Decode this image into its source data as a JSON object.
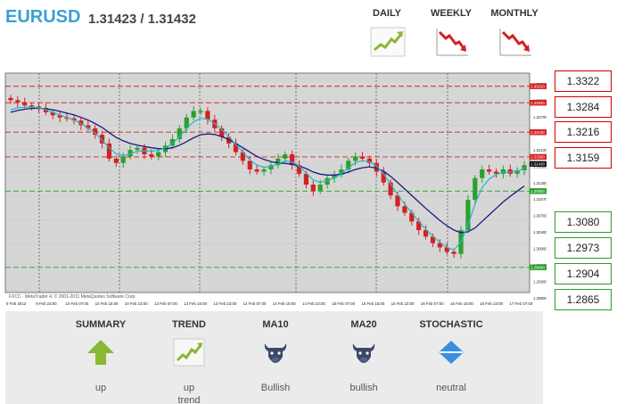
{
  "header": {
    "pair": "EURUSD",
    "quote": "1.31423 / 1.31432"
  },
  "timeframes": [
    {
      "label": "DAILY",
      "icon": "trend-up-icon",
      "direction": "up",
      "color": "#8ab833"
    },
    {
      "label": "WEEKLY",
      "icon": "trend-down-icon",
      "direction": "down",
      "color": "#d42020"
    },
    {
      "label": "MONTHLY",
      "icon": "trend-down-icon",
      "direction": "down",
      "color": "#d42020"
    }
  ],
  "resistance_levels": [
    "1.3322",
    "1.3284",
    "1.3216",
    "1.3159"
  ],
  "support_levels": [
    "1.3080",
    "1.2973",
    "1.2904",
    "1.2865"
  ],
  "summary": {
    "items": [
      {
        "title": "SUMMARY",
        "icon": "arrow-up-icon",
        "value": "up"
      },
      {
        "title": "TREND",
        "icon": "trend-up-icon",
        "value": "up\ntrend"
      },
      {
        "title": "MA10",
        "icon": "bull-icon",
        "value": "Bullish"
      },
      {
        "title": "MA20",
        "icon": "bull-icon",
        "value": "bullish"
      },
      {
        "title": "STOCHASTIC",
        "icon": "diamond-neutral-icon",
        "value": "neutral"
      }
    ]
  },
  "colors": {
    "accent": "#3aa0d5",
    "bull": "#2ca02c",
    "bear": "#d62020",
    "ma_fast": "#20b8c8",
    "ma_slow": "#1a1a80",
    "up_icon": "#8ab833",
    "neutral_icon": "#3a8ee0",
    "bull_icon": "#3a4a66"
  },
  "chart_data": {
    "type": "candlestick",
    "watermark": "FXCC · MetaTrader 4, © 2001-2011 MetaQuotes Software Corp.",
    "ylim": [
      1.285,
      1.334
    ],
    "yticks": [
      "1.33320",
      "1.33050",
      "1.32700",
      "1.32500",
      "1.32100",
      "1.31800",
      "1.31400",
      "1.31070",
      "1.30700",
      "1.30400",
      "1.30000",
      "1.29600",
      "1.29300",
      "1.28900"
    ],
    "xticks": [
      "9 Feb 2012",
      "9 Feb 23:00",
      "10 Feb 07:00",
      "10 Feb 15:00",
      "10 Feb 23:00",
      "13 Feb 07:00",
      "13 Feb 15:00",
      "13 Feb 23:00",
      "14 Feb 07:00",
      "14 Feb 15:00",
      "14 Feb 23:00",
      "15 Feb 07:00",
      "15 Feb 15:00",
      "15 Feb 23:00",
      "16 Feb 07:00",
      "16 Feb 15:00",
      "16 Feb 23:00",
      "17 Feb 07:00"
    ],
    "close": [
      1.329,
      1.3285,
      1.3278,
      1.3275,
      1.3272,
      1.3262,
      1.3255,
      1.325,
      1.3248,
      1.3243,
      1.3232,
      1.3225,
      1.321,
      1.319,
      1.3155,
      1.3145,
      1.316,
      1.3175,
      1.318,
      1.3165,
      1.316,
      1.317,
      1.3185,
      1.32,
      1.3225,
      1.325,
      1.3265,
      1.3265,
      1.3245,
      1.3225,
      1.3205,
      1.319,
      1.317,
      1.315,
      1.313,
      1.3125,
      1.313,
      1.314,
      1.3155,
      1.3165,
      1.314,
      1.312,
      1.3095,
      1.308,
      1.3095,
      1.311,
      1.3118,
      1.313,
      1.315,
      1.316,
      1.3155,
      1.3145,
      1.3125,
      1.31,
      1.307,
      1.3045,
      1.303,
      1.301,
      1.299,
      1.2975,
      1.296,
      1.295,
      1.294,
      1.2935,
      1.299,
      1.306,
      1.311,
      1.313,
      1.3125,
      1.312,
      1.313,
      1.312,
      1.3128,
      1.314
    ],
    "ma_fast": [
      1.3268,
      1.3272,
      1.3274,
      1.3274,
      1.3272,
      1.3268,
      1.3262,
      1.3256,
      1.325,
      1.3244,
      1.3236,
      1.3226,
      1.3214,
      1.3198,
      1.318,
      1.3166,
      1.3162,
      1.3166,
      1.3172,
      1.3173,
      1.3172,
      1.3174,
      1.318,
      1.319,
      1.3206,
      1.3225,
      1.324,
      1.3248,
      1.3246,
      1.3236,
      1.3222,
      1.3206,
      1.3188,
      1.317,
      1.3152,
      1.314,
      1.3135,
      1.3137,
      1.3143,
      1.315,
      1.3147,
      1.3138,
      1.3122,
      1.3106,
      1.31,
      1.3104,
      1.311,
      1.312,
      1.3134,
      1.3146,
      1.315,
      1.3148,
      1.3138,
      1.312,
      1.3096,
      1.3072,
      1.305,
      1.303,
      1.301,
      1.2992,
      1.2976,
      1.2962,
      1.295,
      1.2944,
      1.2962,
      1.3002,
      1.305,
      1.3088,
      1.3108,
      1.3118,
      1.3124,
      1.3124,
      1.3126,
      1.3132
    ],
    "ma_slow": [
      1.3262,
      1.3266,
      1.3269,
      1.3271,
      1.3271,
      1.327,
      1.3268,
      1.3264,
      1.326,
      1.3256,
      1.325,
      1.3244,
      1.3236,
      1.3227,
      1.3215,
      1.3204,
      1.3196,
      1.319,
      1.3186,
      1.3183,
      1.318,
      1.3178,
      1.3178,
      1.318,
      1.3186,
      1.3194,
      1.3203,
      1.321,
      1.3212,
      1.3211,
      1.3206,
      1.3199,
      1.319,
      1.318,
      1.317,
      1.316,
      1.3153,
      1.3148,
      1.3145,
      1.3144,
      1.3142,
      1.3138,
      1.3132,
      1.3124,
      1.3119,
      1.3117,
      1.3117,
      1.3119,
      1.3124,
      1.313,
      1.3134,
      1.3136,
      1.3133,
      1.3126,
      1.3114,
      1.31,
      1.3085,
      1.307,
      1.3055,
      1.304,
      1.3026,
      1.3012,
      1.3,
      1.299,
      1.2984,
      1.2986,
      1.2995,
      1.301,
      1.3025,
      1.304,
      1.3055,
      1.3068,
      1.308,
      1.3092
    ],
    "levels": [
      {
        "value": 1.3322,
        "type": "resistance"
      },
      {
        "value": 1.3284,
        "type": "resistance"
      },
      {
        "value": 1.3216,
        "type": "resistance"
      },
      {
        "value": 1.3159,
        "type": "resistance"
      },
      {
        "value": 1.308,
        "type": "support"
      },
      {
        "value": 1.2904,
        "type": "support"
      }
    ],
    "price_tags": [
      {
        "value": 1.3322,
        "label": "1.33220",
        "type": "resistance"
      },
      {
        "value": 1.3284,
        "label": "1.32840",
        "type": "resistance"
      },
      {
        "value": 1.3216,
        "label": "1.32160",
        "type": "resistance"
      },
      {
        "value": 1.3159,
        "label": "1.31590",
        "type": "resistance"
      },
      {
        "value": 1.31428,
        "label": "1.31428",
        "type": "current"
      },
      {
        "value": 1.308,
        "label": "1.30800",
        "type": "support"
      },
      {
        "value": 1.2904,
        "label": "1.29040",
        "type": "support"
      }
    ]
  }
}
